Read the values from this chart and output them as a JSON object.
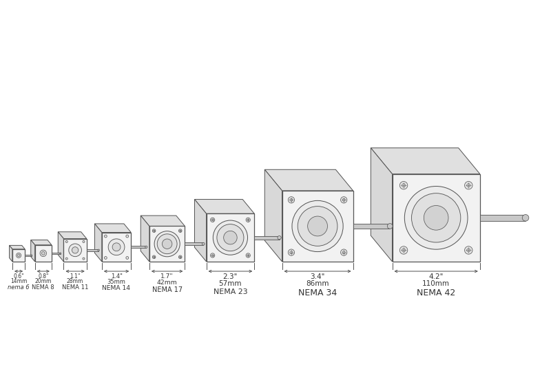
{
  "motors": [
    {
      "name": "nema 6",
      "size_in": "0.6\"",
      "size_mm": "14mm",
      "size": 0.6
    },
    {
      "name": "NEMA 8",
      "size_in": "0.8\"",
      "size_mm": "20mm",
      "size": 0.8
    },
    {
      "name": "NEMA 11",
      "size_in": "1.1\"",
      "size_mm": "28mm",
      "size": 1.1
    },
    {
      "name": "NEMA 14",
      "size_in": "1.4\"",
      "size_mm": "35mm",
      "size": 1.4
    },
    {
      "name": "NEMA 17",
      "size_in": "1.7\"",
      "size_mm": "42mm",
      "size": 1.7
    },
    {
      "name": "NEMA 23",
      "size_in": "2.3\"",
      "size_mm": "57mm",
      "size": 2.3
    },
    {
      "name": "NEMA 34",
      "size_in": "3.4\"",
      "size_mm": "86mm",
      "size": 3.4
    },
    {
      "name": "NEMA 42",
      "size_in": "4.2\"",
      "size_mm": "110mm",
      "size": 4.2
    }
  ],
  "bg_color": "#ffffff",
  "line_color": "#555555",
  "lw_main": 0.9,
  "text_color": "#333333"
}
